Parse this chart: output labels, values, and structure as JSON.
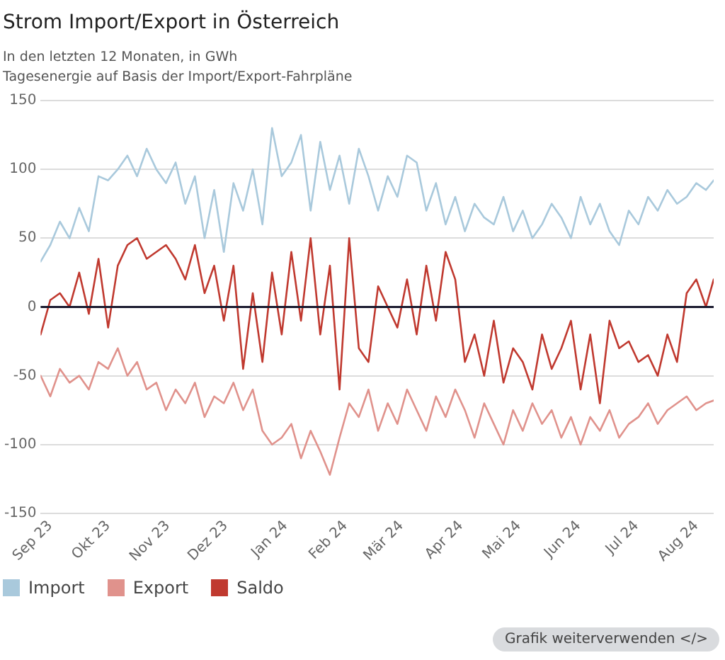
{
  "chart_data": {
    "type": "line",
    "title": "Strom Import/Export in Österreich",
    "subtitle": "In den letzten 12 Monaten, in GWh\nTagesenergie auf Basis der Import/Export-Fahrpläne",
    "x": [
      "2023-08-27",
      "2023-09-01",
      "2023-09-06",
      "2023-09-11",
      "2023-09-16",
      "2023-09-21",
      "2023-09-26",
      "2023-10-01",
      "2023-10-06",
      "2023-10-11",
      "2023-10-16",
      "2023-10-21",
      "2023-10-26",
      "2023-10-31",
      "2023-11-05",
      "2023-11-10",
      "2023-11-15",
      "2023-11-20",
      "2023-11-25",
      "2023-11-30",
      "2023-12-05",
      "2023-12-10",
      "2023-12-15",
      "2023-12-20",
      "2023-12-25",
      "2023-12-30",
      "2024-01-04",
      "2024-01-09",
      "2024-01-14",
      "2024-01-19",
      "2024-01-24",
      "2024-01-29",
      "2024-02-03",
      "2024-02-08",
      "2024-02-13",
      "2024-02-18",
      "2024-02-23",
      "2024-02-28",
      "2024-03-04",
      "2024-03-09",
      "2024-03-14",
      "2024-03-19",
      "2024-03-24",
      "2024-03-29",
      "2024-04-03",
      "2024-04-08",
      "2024-04-13",
      "2024-04-18",
      "2024-04-23",
      "2024-04-28",
      "2024-05-03",
      "2024-05-08",
      "2024-05-13",
      "2024-05-18",
      "2024-05-23",
      "2024-05-28",
      "2024-06-02",
      "2024-06-07",
      "2024-06-12",
      "2024-06-17",
      "2024-06-22",
      "2024-06-27",
      "2024-07-02",
      "2024-07-07",
      "2024-07-12",
      "2024-07-17",
      "2024-07-22",
      "2024-07-27",
      "2024-08-01",
      "2024-08-06",
      "2024-08-10"
    ],
    "series": [
      {
        "name": "Import",
        "color": "#a9c9dc",
        "values": [
          33,
          45,
          62,
          50,
          72,
          55,
          95,
          92,
          100,
          110,
          95,
          115,
          100,
          90,
          105,
          75,
          95,
          50,
          85,
          40,
          90,
          70,
          100,
          60,
          130,
          95,
          105,
          125,
          70,
          120,
          85,
          110,
          75,
          115,
          95,
          70,
          95,
          80,
          110,
          105,
          70,
          90,
          60,
          80,
          55,
          75,
          65,
          60,
          80,
          55,
          70,
          50,
          60,
          75,
          65,
          50,
          80,
          60,
          75,
          55,
          45,
          70,
          60,
          80,
          70,
          85,
          75,
          80,
          90,
          85,
          92
        ]
      },
      {
        "name": "Export",
        "color": "#e0928c",
        "values": [
          -50,
          -65,
          -45,
          -55,
          -50,
          -60,
          -40,
          -45,
          -30,
          -50,
          -40,
          -60,
          -55,
          -75,
          -60,
          -70,
          -55,
          -80,
          -65,
          -70,
          -55,
          -75,
          -60,
          -90,
          -100,
          -95,
          -85,
          -110,
          -90,
          -105,
          -122,
          -95,
          -70,
          -80,
          -60,
          -90,
          -70,
          -85,
          -60,
          -75,
          -90,
          -65,
          -80,
          -60,
          -75,
          -95,
          -70,
          -85,
          -100,
          -75,
          -90,
          -70,
          -85,
          -75,
          -95,
          -80,
          -100,
          -80,
          -90,
          -75,
          -95,
          -85,
          -80,
          -70,
          -85,
          -75,
          -70,
          -65,
          -75,
          -70,
          -68
        ]
      },
      {
        "name": "Saldo",
        "color": "#c0392f",
        "values": [
          -20,
          5,
          10,
          0,
          25,
          -5,
          35,
          -15,
          30,
          45,
          50,
          35,
          40,
          45,
          35,
          20,
          45,
          10,
          30,
          -10,
          30,
          -45,
          10,
          -40,
          25,
          -20,
          40,
          -10,
          50,
          -20,
          30,
          -60,
          50,
          -30,
          -40,
          15,
          0,
          -15,
          20,
          -20,
          30,
          -10,
          40,
          20,
          -40,
          -20,
          -50,
          -10,
          -55,
          -30,
          -40,
          -60,
          -20,
          -45,
          -30,
          -10,
          -60,
          -20,
          -70,
          -10,
          -30,
          -25,
          -40,
          -35,
          -50,
          -20,
          -40,
          10,
          20,
          0,
          20
        ]
      }
    ],
    "xlim": [
      "2023-08-27",
      "2024-08-10"
    ],
    "xticks": [
      {
        "value": "2023-09-01",
        "label": "Sep 23"
      },
      {
        "value": "2023-10-01",
        "label": "Okt 23"
      },
      {
        "value": "2023-11-01",
        "label": "Nov 23"
      },
      {
        "value": "2023-12-01",
        "label": "Dez 23"
      },
      {
        "value": "2024-01-01",
        "label": "Jan 24"
      },
      {
        "value": "2024-02-01",
        "label": "Feb 24"
      },
      {
        "value": "2024-03-01",
        "label": "Mär 24"
      },
      {
        "value": "2024-04-01",
        "label": "Apr 24"
      },
      {
        "value": "2024-05-01",
        "label": "Mai 24"
      },
      {
        "value": "2024-06-01",
        "label": "Jun 24"
      },
      {
        "value": "2024-07-01",
        "label": "Jul 24"
      },
      {
        "value": "2024-08-01",
        "label": "Aug 24"
      }
    ],
    "ylim": [
      -150,
      150
    ],
    "yticks": [
      -150,
      -100,
      -50,
      0,
      50,
      100,
      150
    ],
    "ref_lines": [
      {
        "axis": "y",
        "value": 0,
        "color": "#1a1a2e"
      }
    ],
    "grid": "y",
    "legend": "bottom left",
    "marker": "none",
    "line_style": "solid",
    "annotations": [
      "Grafik weiterverwenden </>"
    ]
  }
}
